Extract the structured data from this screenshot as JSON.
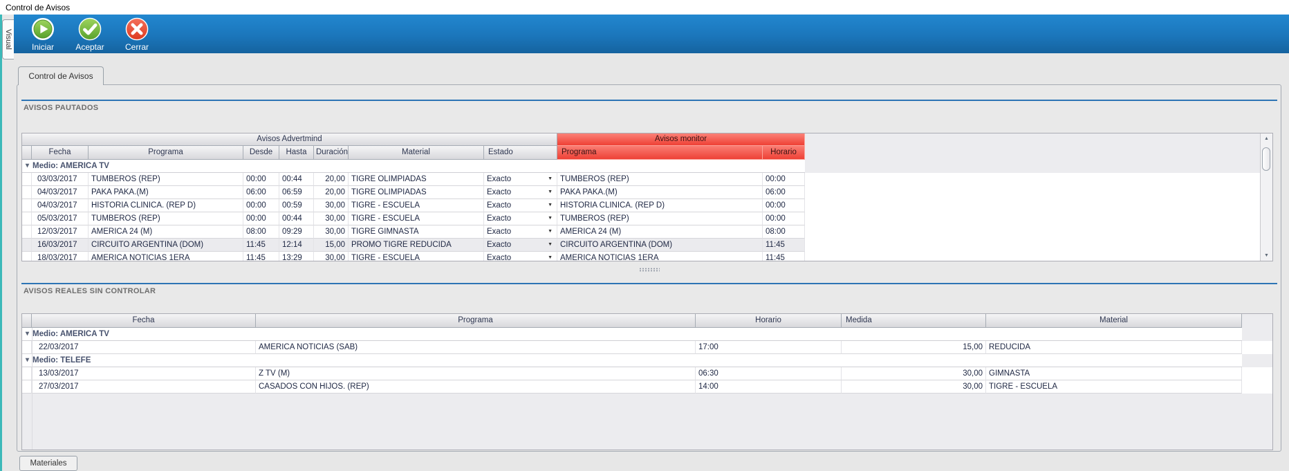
{
  "window": {
    "title": "Control de Avisos"
  },
  "left_dock": {
    "tab": "Visual"
  },
  "toolbar": {
    "buttons": [
      {
        "id": "iniciar",
        "label": "Iniciar",
        "icon": "play-icon"
      },
      {
        "id": "aceptar",
        "label": "Aceptar",
        "icon": "check-icon"
      },
      {
        "id": "cerrar",
        "label": "Cerrar",
        "icon": "close-icon"
      }
    ]
  },
  "tabs": {
    "main": "Control de Avisos",
    "bottom": "Materiales"
  },
  "pautados": {
    "title": "AVISOS PAUTADOS",
    "bands": {
      "left": "Avisos Advertmind",
      "right": "Avisos monitor"
    },
    "columns": [
      "Fecha",
      "Programa",
      "Desde",
      "Hasta",
      "Duración",
      "Material",
      "Estado"
    ],
    "monitor_columns": [
      "Programa",
      "Horario"
    ],
    "group_label": "Medio: AMERICA TV",
    "rows": [
      {
        "fecha": "03/03/2017",
        "programa": "TUMBEROS (REP)",
        "desde": "00:00",
        "hasta": "00:44",
        "duracion": "20,00",
        "material": "TIGRE OLIMPIADAS",
        "estado": "Exacto",
        "mon_programa": "TUMBEROS (REP)",
        "mon_horario": "00:00",
        "highlight": false
      },
      {
        "fecha": "04/03/2017",
        "programa": "PAKA PAKA.(M)",
        "desde": "06:00",
        "hasta": "06:59",
        "duracion": "20,00",
        "material": "TIGRE OLIMPIADAS",
        "estado": "Exacto",
        "mon_programa": "PAKA PAKA.(M)",
        "mon_horario": "06:00",
        "highlight": false
      },
      {
        "fecha": "04/03/2017",
        "programa": "HISTORIA CLINICA. (REP D)",
        "desde": "00:00",
        "hasta": "00:59",
        "duracion": "30,00",
        "material": "TIGRE - ESCUELA",
        "estado": "Exacto",
        "mon_programa": "HISTORIA CLINICA. (REP D)",
        "mon_horario": "00:00",
        "highlight": false
      },
      {
        "fecha": "05/03/2017",
        "programa": "TUMBEROS (REP)",
        "desde": "00:00",
        "hasta": "00:44",
        "duracion": "30,00",
        "material": "TIGRE - ESCUELA",
        "estado": "Exacto",
        "mon_programa": "TUMBEROS (REP)",
        "mon_horario": "00:00",
        "highlight": false
      },
      {
        "fecha": "12/03/2017",
        "programa": "AMERICA 24 (M)",
        "desde": "08:00",
        "hasta": "09:29",
        "duracion": "30,00",
        "material": "TIGRE GIMNASTA",
        "estado": "Exacto",
        "mon_programa": "AMERICA 24 (M)",
        "mon_horario": "08:00",
        "highlight": false
      },
      {
        "fecha": "16/03/2017",
        "programa": "CIRCUITO ARGENTINA (DOM)",
        "desde": "11:45",
        "hasta": "12:14",
        "duracion": "15,00",
        "material": "PROMO TIGRE REDUCIDA",
        "estado": "Exacto",
        "mon_programa": "CIRCUITO ARGENTINA (DOM)",
        "mon_horario": "11:45",
        "highlight": true
      },
      {
        "fecha": "18/03/2017",
        "programa": "AMERICA NOTICIAS 1ERA",
        "desde": "11:45",
        "hasta": "13:29",
        "duracion": "30,00",
        "material": "TIGRE - ESCUELA",
        "estado": "Exacto",
        "mon_programa": "AMERICA NOTICIAS 1ERA",
        "mon_horario": "11:45",
        "highlight": false
      }
    ]
  },
  "reales": {
    "title": "AVISOS REALES SIN CONTROLAR",
    "columns": [
      "Fecha",
      "Programa",
      "Horario",
      "Medida",
      "Material"
    ],
    "groups": [
      {
        "label": "Medio: AMERICA TV",
        "rows": [
          {
            "fecha": "22/03/2017",
            "programa": "AMERICA NOTICIAS (SAB)",
            "horario": "17:00",
            "medida": "15,00",
            "material": "REDUCIDA"
          }
        ]
      },
      {
        "label": "Medio: TELEFE",
        "rows": [
          {
            "fecha": "13/03/2017",
            "programa": "Z TV (M)",
            "horario": "06:30",
            "medida": "30,00",
            "material": "GIMNASTA"
          },
          {
            "fecha": "27/03/2017",
            "programa": "CASADOS CON HIJOS. (REP)",
            "horario": "14:00",
            "medida": "30,00",
            "material": "TIGRE - ESCUELA"
          }
        ]
      }
    ]
  },
  "colors": {
    "toolbar_blue": "#1b76bb",
    "accent_teal": "#3cb9b9",
    "section_rule_blue": "#2d74b5",
    "monitor_red": "#ef4136",
    "iniciar_green": "#6db13e",
    "cerrar_red": "#e5532f"
  }
}
